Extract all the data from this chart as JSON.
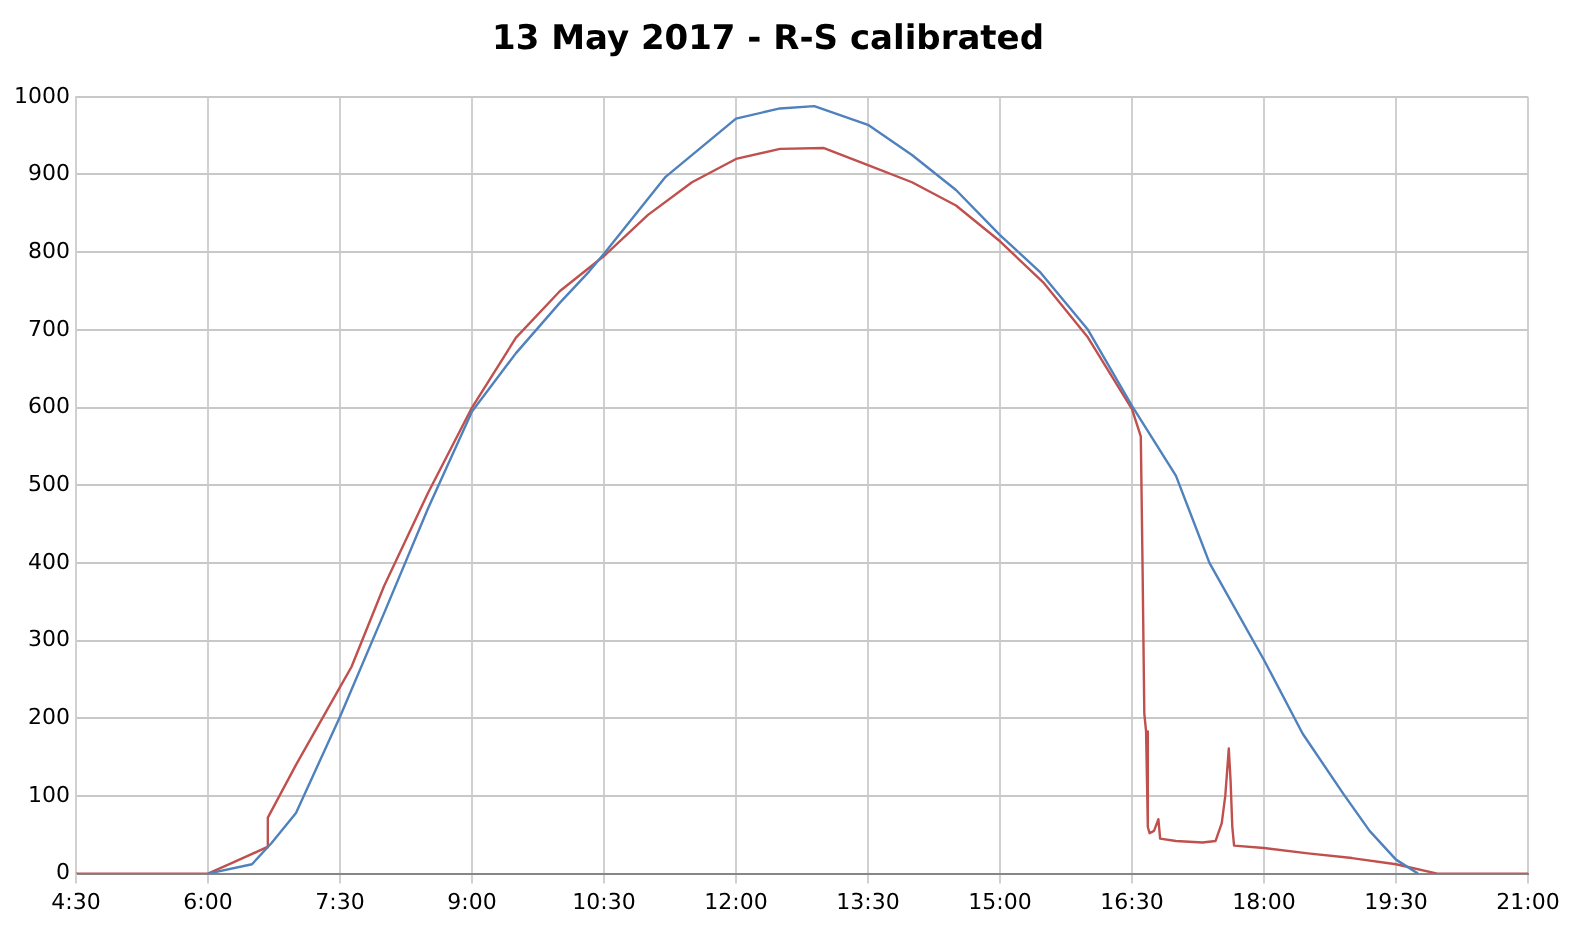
{
  "chart_data": {
    "type": "line",
    "title": "13 May 2017 - R-S calibrated",
    "xlim": [
      4.5,
      21
    ],
    "xticks": [
      {
        "value": 4.5,
        "label": "4:30"
      },
      {
        "value": 6,
        "label": "6:00"
      },
      {
        "value": 7.5,
        "label": "7:30"
      },
      {
        "value": 9,
        "label": "9:00"
      },
      {
        "value": 10.5,
        "label": "10:30"
      },
      {
        "value": 12,
        "label": "12:00"
      },
      {
        "value": 13.5,
        "label": "13:30"
      },
      {
        "value": 15,
        "label": "15:00"
      },
      {
        "value": 16.5,
        "label": "16:30"
      },
      {
        "value": 18,
        "label": "18:00"
      },
      {
        "value": 19.5,
        "label": "19:30"
      },
      {
        "value": 21,
        "label": "21:00"
      }
    ],
    "ylim": [
      0,
      1000
    ],
    "yticks": [
      0,
      100,
      200,
      300,
      400,
      500,
      600,
      700,
      800,
      900,
      1000
    ],
    "grid": true,
    "legend": false,
    "marker": "none",
    "line_style": "solid",
    "series": [
      {
        "color": "#4f81bd",
        "x": [
          6.0,
          6.5,
          6.72,
          7.0,
          7.5,
          8.0,
          8.5,
          9.0,
          9.5,
          10.0,
          10.33,
          10.5,
          11.2,
          12.0,
          12.5,
          12.89,
          13.5,
          14.0,
          14.5,
          15.0,
          15.45,
          16.0,
          16.5,
          17.0,
          17.38,
          18.0,
          18.44,
          18.9,
          19.2,
          19.5,
          19.75
        ],
        "values": [
          0,
          12,
          39,
          78,
          202,
          335,
          470,
          595,
          670,
          735,
          775,
          798,
          897,
          972,
          985,
          988,
          964,
          925,
          880,
          822,
          775,
          700,
          602,
          512,
          400,
          275,
          180,
          103,
          55,
          18,
          0
        ]
      },
      {
        "color": "#c0504d",
        "x": [
          4.5,
          6.0,
          6.3,
          6.67,
          6.68,
          7.0,
          7.5,
          7.63,
          8.0,
          8.5,
          9.0,
          9.5,
          10.0,
          10.5,
          11.0,
          11.5,
          12.0,
          12.5,
          13.0,
          13.5,
          14.0,
          14.5,
          15.0,
          15.5,
          16.0,
          16.5,
          16.6,
          16.62,
          16.64,
          16.66,
          16.68,
          16.7,
          16.75,
          16.8,
          16.82,
          17.0,
          17.3,
          17.45,
          17.52,
          17.56,
          17.6,
          17.62,
          17.64,
          17.66,
          18.0,
          18.5,
          19.0,
          19.5,
          19.97,
          21.0
        ],
        "values": [
          0,
          0,
          15,
          34,
          72,
          140,
          240,
          266,
          370,
          490,
          600,
          690,
          750,
          795,
          848,
          890,
          920,
          933,
          934,
          912,
          890,
          860,
          814,
          760,
          690,
          598,
          563,
          395,
          206,
          183,
          60,
          52,
          55,
          70,
          45,
          42,
          40,
          42,
          65,
          100,
          161,
          120,
          60,
          36,
          33,
          26,
          20,
          12,
          0,
          0
        ]
      }
    ]
  }
}
